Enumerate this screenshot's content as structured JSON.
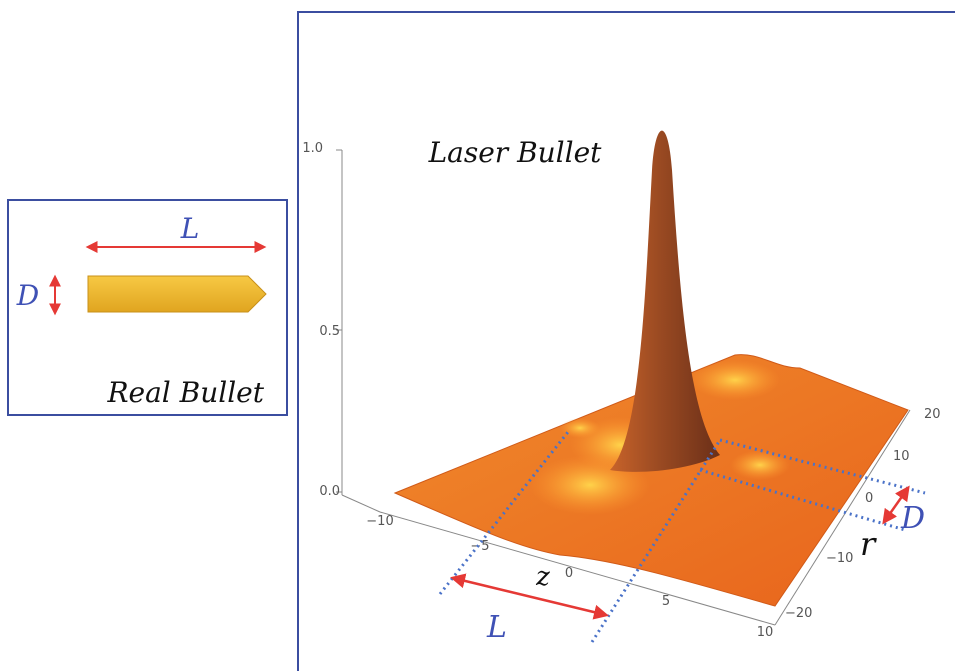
{
  "real_bullet_panel": {
    "length_label": "L",
    "diameter_label": "D",
    "caption": "Real Bullet"
  },
  "laser_bullet_panel": {
    "caption": "Laser Bullet",
    "vertical_axis_ticks": [
      "1.0",
      "0.5",
      "0.0"
    ],
    "z_axis_label": "z",
    "z_axis_ticks": [
      "−10",
      "−5",
      "0",
      "5",
      "10"
    ],
    "r_axis_label": "r",
    "r_axis_ticks": [
      "20",
      "10",
      "0",
      "−10",
      "−20"
    ],
    "length_label": "L",
    "diameter_label": "D"
  }
}
